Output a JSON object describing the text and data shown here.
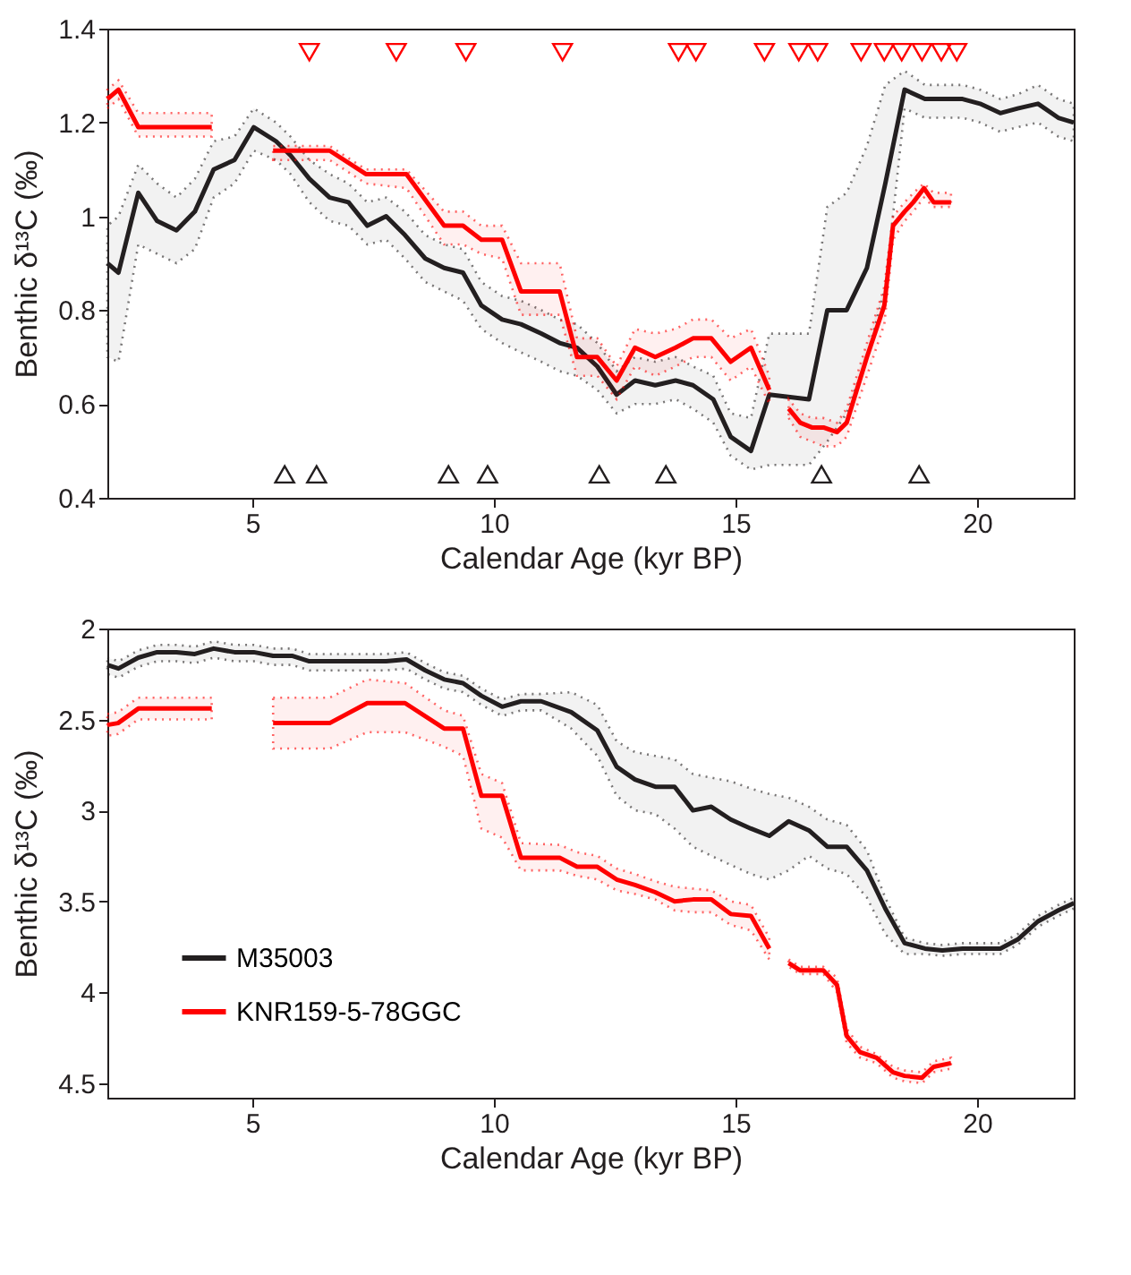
{
  "chart_data": [
    {
      "type": "line",
      "xlabel": "Calendar Age (kyr BP)",
      "ylabel": "Benthic δ¹³C (‰)",
      "xlim": [
        2,
        22
      ],
      "xticks": [
        5,
        10,
        15,
        20
      ],
      "ylim": [
        0.4,
        1.4
      ],
      "yticks": [
        0.4,
        0.6,
        0.8,
        1,
        1.2,
        1.4
      ],
      "grid": false,
      "series": [
        {
          "type": "line",
          "color": "#231f20",
          "x": [
            2.0,
            2.23,
            2.64,
            3.03,
            3.43,
            3.81,
            4.2,
            4.63,
            5.03,
            5.49,
            5.79,
            6.18,
            6.6,
            6.99,
            7.38,
            7.77,
            8.16,
            8.58,
            8.97,
            9.36,
            9.74,
            10.17,
            10.56,
            10.98,
            11.36,
            11.72,
            12.14,
            12.54,
            12.92,
            13.34,
            13.76,
            14.12,
            14.54,
            14.9,
            15.32,
            15.7,
            16.52,
            16.9,
            17.3,
            17.72,
            18.1,
            18.5,
            18.92,
            19.28,
            19.7,
            20.06,
            20.48,
            20.84,
            21.26,
            21.68,
            22.0
          ],
          "values": [
            0.9,
            0.88,
            1.05,
            0.99,
            0.97,
            1.01,
            1.1,
            1.12,
            1.19,
            1.16,
            1.13,
            1.08,
            1.04,
            1.03,
            0.98,
            1.0,
            0.96,
            0.91,
            0.89,
            0.88,
            0.81,
            0.78,
            0.77,
            0.75,
            0.73,
            0.72,
            0.68,
            0.62,
            0.65,
            0.64,
            0.65,
            0.64,
            0.61,
            0.53,
            0.5,
            0.62,
            0.61,
            0.8,
            0.8,
            0.89,
            1.07,
            1.27,
            1.25,
            1.25,
            1.25,
            1.24,
            1.22,
            1.23,
            1.24,
            1.21,
            1.2
          ],
          "lower": [
            0.7,
            0.69,
            0.94,
            0.92,
            0.9,
            0.93,
            1.04,
            1.07,
            1.14,
            1.12,
            1.09,
            1.03,
            0.99,
            0.98,
            0.94,
            0.95,
            0.91,
            0.86,
            0.84,
            0.82,
            0.76,
            0.73,
            0.71,
            0.69,
            0.67,
            0.66,
            0.63,
            0.58,
            0.6,
            0.6,
            0.61,
            0.59,
            0.56,
            0.49,
            0.46,
            0.47,
            0.47,
            0.52,
            0.58,
            0.7,
            0.85,
            1.23,
            1.21,
            1.21,
            1.21,
            1.2,
            1.18,
            1.19,
            1.2,
            1.17,
            1.16
          ],
          "upper": [
            0.98,
            1.0,
            1.11,
            1.07,
            1.04,
            1.08,
            1.16,
            1.17,
            1.23,
            1.2,
            1.17,
            1.12,
            1.09,
            1.07,
            1.03,
            1.04,
            1.01,
            0.96,
            0.94,
            0.93,
            0.86,
            0.83,
            0.82,
            0.8,
            0.78,
            0.77,
            0.73,
            0.67,
            0.7,
            0.69,
            0.7,
            0.68,
            0.66,
            0.58,
            0.57,
            0.75,
            0.75,
            1.02,
            1.05,
            1.15,
            1.28,
            1.31,
            1.28,
            1.28,
            1.28,
            1.27,
            1.25,
            1.26,
            1.28,
            1.25,
            1.24
          ]
        },
        {
          "type": "line",
          "color": "#ff0000",
          "x": [
            2.0,
            2.23,
            2.64,
            4.16,
            4.8,
            5.43,
            6.6,
            7.35,
            8.19,
            8.97,
            9.36,
            9.74,
            10.17,
            10.56,
            11.36,
            11.72,
            12.14,
            12.54,
            12.92,
            13.34,
            13.76,
            14.12,
            14.5,
            14.9,
            15.32,
            15.7,
            15.9,
            16.1,
            16.34,
            16.58,
            16.82,
            17.1,
            17.3,
            17.72,
            18.08,
            18.26,
            18.5,
            18.68,
            18.9,
            19.1,
            19.46
          ],
          "values": [
            1.25,
            1.27,
            1.19,
            1.19,
            null,
            1.14,
            1.14,
            1.09,
            1.09,
            0.98,
            0.98,
            0.95,
            0.95,
            0.84,
            0.84,
            0.7,
            0.7,
            0.65,
            0.72,
            0.7,
            0.72,
            0.74,
            0.74,
            0.69,
            0.72,
            0.63,
            null,
            0.59,
            0.56,
            0.55,
            0.55,
            0.54,
            0.56,
            0.7,
            0.81,
            0.98,
            1.01,
            1.03,
            1.06,
            1.03,
            1.03
          ],
          "lower": [
            1.23,
            1.25,
            1.17,
            1.17,
            null,
            1.12,
            1.12,
            1.07,
            1.06,
            0.94,
            0.94,
            0.92,
            0.91,
            0.79,
            0.79,
            0.66,
            0.66,
            0.61,
            0.68,
            0.66,
            0.68,
            0.7,
            0.7,
            0.65,
            0.68,
            0.6,
            null,
            0.57,
            0.53,
            0.52,
            0.51,
            0.51,
            0.53,
            0.66,
            0.77,
            0.95,
            0.99,
            1.01,
            1.04,
            1.02,
            1.02
          ],
          "upper": [
            1.27,
            1.29,
            1.22,
            1.22,
            null,
            1.15,
            1.15,
            1.1,
            1.1,
            1.01,
            1.01,
            0.98,
            0.98,
            0.9,
            0.9,
            0.74,
            0.74,
            0.68,
            0.76,
            0.75,
            0.76,
            0.78,
            0.78,
            0.74,
            0.76,
            0.66,
            null,
            0.61,
            0.58,
            0.57,
            0.57,
            0.56,
            0.59,
            0.73,
            0.85,
            1.0,
            1.03,
            1.05,
            1.07,
            1.05,
            1.05
          ]
        },
        {
          "type": "scatter",
          "marker": "triangle-down",
          "color": "#ff0000",
          "x": [
            6.18,
            7.98,
            9.42,
            11.42,
            13.82,
            14.18,
            15.6,
            16.31,
            16.7,
            17.6,
            18.08,
            18.44,
            18.86,
            19.26,
            19.58
          ],
          "values": [
            1.35,
            1.35,
            1.35,
            1.35,
            1.35,
            1.35,
            1.35,
            1.35,
            1.35,
            1.35,
            1.35,
            1.35,
            1.35,
            1.35,
            1.35
          ]
        },
        {
          "type": "scatter",
          "marker": "triangle",
          "color": "#231f20",
          "x": [
            5.67,
            6.33,
            9.06,
            9.87,
            12.18,
            13.56,
            16.78,
            18.8
          ],
          "values": [
            0.45,
            0.45,
            0.45,
            0.45,
            0.45,
            0.45,
            0.45,
            0.45
          ]
        }
      ]
    },
    {
      "type": "line",
      "xlabel": "Calendar Age (kyr BP)",
      "ylabel": "Benthic δ¹³C (‰)",
      "xlim": [
        2,
        22
      ],
      "xticks": [
        5,
        10,
        15,
        20
      ],
      "ylim": [
        4.58,
        2
      ],
      "yticks": [
        2,
        2.5,
        3,
        3.5,
        4,
        4.5
      ],
      "grid": false,
      "legend": "bottom left",
      "series": [
        {
          "type": "line",
          "name": "M35003",
          "color": "#231f20",
          "x": [
            2.0,
            2.23,
            2.64,
            3.03,
            3.43,
            3.81,
            4.2,
            4.63,
            5.03,
            5.43,
            5.82,
            6.18,
            7.0,
            7.77,
            8.19,
            8.58,
            8.97,
            9.36,
            9.74,
            10.17,
            10.56,
            10.98,
            11.6,
            12.14,
            12.54,
            12.92,
            13.34,
            13.74,
            14.12,
            14.5,
            14.9,
            15.32,
            15.7,
            16.1,
            16.52,
            16.9,
            17.3,
            17.72,
            18.1,
            18.5,
            18.92,
            19.28,
            19.7,
            20.06,
            20.48,
            20.84,
            21.26,
            21.68,
            22.0
          ],
          "values": [
            2.2,
            2.22,
            2.16,
            2.13,
            2.13,
            2.14,
            2.11,
            2.13,
            2.13,
            2.15,
            2.15,
            2.18,
            2.18,
            2.18,
            2.17,
            2.23,
            2.28,
            2.3,
            2.37,
            2.43,
            2.4,
            2.4,
            2.46,
            2.56,
            2.76,
            2.83,
            2.87,
            2.87,
            3.0,
            2.98,
            3.05,
            3.1,
            3.14,
            3.06,
            3.11,
            3.2,
            3.2,
            3.33,
            3.54,
            3.73,
            3.76,
            3.77,
            3.76,
            3.76,
            3.76,
            3.71,
            3.61,
            3.55,
            3.51
          ],
          "lower": [
            2.16,
            2.18,
            2.12,
            2.09,
            2.09,
            2.1,
            2.07,
            2.09,
            2.09,
            2.11,
            2.11,
            2.14,
            2.14,
            2.14,
            2.13,
            2.19,
            2.24,
            2.26,
            2.33,
            2.39,
            2.36,
            2.36,
            2.35,
            2.42,
            2.62,
            2.68,
            2.7,
            2.72,
            2.8,
            2.82,
            2.84,
            2.88,
            2.91,
            2.93,
            2.98,
            3.05,
            3.08,
            3.22,
            3.48,
            3.7,
            3.73,
            3.74,
            3.73,
            3.73,
            3.73,
            3.68,
            3.58,
            3.52,
            3.48
          ],
          "upper": [
            2.25,
            2.27,
            2.21,
            2.18,
            2.18,
            2.19,
            2.16,
            2.18,
            2.18,
            2.2,
            2.2,
            2.23,
            2.23,
            2.23,
            2.22,
            2.28,
            2.33,
            2.35,
            2.42,
            2.48,
            2.45,
            2.45,
            2.55,
            2.7,
            2.92,
            3.0,
            3.02,
            3.1,
            3.2,
            3.25,
            3.3,
            3.35,
            3.38,
            3.33,
            3.25,
            3.32,
            3.35,
            3.48,
            3.68,
            3.79,
            3.79,
            3.8,
            3.79,
            3.79,
            3.79,
            3.74,
            3.64,
            3.58,
            3.54
          ]
        },
        {
          "type": "line",
          "name": "KNR159-5-78GGC",
          "color": "#ff0000",
          "x": [
            2.0,
            2.22,
            2.64,
            4.16,
            4.8,
            5.43,
            6.6,
            7.38,
            8.16,
            8.97,
            9.36,
            9.74,
            10.17,
            10.56,
            11.36,
            11.72,
            12.14,
            12.54,
            12.92,
            13.34,
            13.74,
            14.12,
            14.5,
            14.9,
            15.32,
            15.7,
            15.9,
            16.1,
            16.34,
            16.82,
            17.1,
            17.3,
            17.58,
            17.92,
            18.26,
            18.5,
            18.86,
            19.1,
            19.46
          ],
          "values": [
            2.53,
            2.52,
            2.44,
            2.44,
            null,
            2.52,
            2.52,
            2.41,
            2.41,
            2.55,
            2.55,
            2.92,
            2.92,
            3.26,
            3.26,
            3.31,
            3.31,
            3.38,
            3.41,
            3.45,
            3.5,
            3.49,
            3.49,
            3.57,
            3.58,
            3.76,
            null,
            3.84,
            3.88,
            3.88,
            3.96,
            4.24,
            4.33,
            4.36,
            4.44,
            4.46,
            4.47,
            4.41,
            4.39
          ],
          "lower": [
            2.47,
            2.46,
            2.38,
            2.38,
            null,
            2.38,
            2.38,
            2.28,
            2.3,
            2.45,
            2.48,
            2.8,
            2.85,
            3.18,
            3.19,
            3.23,
            3.25,
            3.32,
            3.35,
            3.39,
            3.42,
            3.43,
            3.44,
            3.5,
            3.52,
            3.7,
            null,
            3.82,
            3.86,
            3.86,
            3.92,
            4.2,
            4.3,
            4.34,
            4.41,
            4.43,
            4.44,
            4.38,
            4.36
          ],
          "upper": [
            2.59,
            2.58,
            2.5,
            2.5,
            null,
            2.66,
            2.66,
            2.57,
            2.57,
            2.65,
            2.7,
            3.1,
            3.15,
            3.33,
            3.33,
            3.36,
            3.38,
            3.44,
            3.46,
            3.49,
            3.55,
            3.56,
            3.56,
            3.63,
            3.66,
            3.82,
            null,
            3.86,
            3.9,
            3.9,
            4.0,
            4.28,
            4.36,
            4.39,
            4.47,
            4.49,
            4.5,
            4.44,
            4.42
          ]
        }
      ]
    }
  ]
}
